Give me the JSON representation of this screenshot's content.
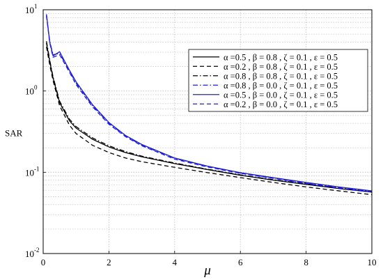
{
  "chart_data": {
    "type": "line",
    "xlabel": "μ",
    "ylabel": "SAR",
    "xlim": [
      0,
      10
    ],
    "ylim": [
      0.01,
      10
    ],
    "yscale": "log",
    "grid": "on (major and minor)",
    "legend_position": "top-right",
    "x_ticks": [
      {
        "value": 0,
        "label": "0"
      },
      {
        "value": 2,
        "label": "2"
      },
      {
        "value": 4,
        "label": "4"
      },
      {
        "value": 6,
        "label": "6"
      },
      {
        "value": 8,
        "label": "8"
      },
      {
        "value": 10,
        "label": "10"
      }
    ],
    "y_ticks": [
      {
        "value": 10,
        "base": "10",
        "exp": "1"
      },
      {
        "value": 1,
        "base": "10",
        "exp": "0"
      },
      {
        "value": 0.1,
        "base": "10",
        "exp": "-1"
      },
      {
        "value": 0.01,
        "base": "10",
        "exp": "-2"
      }
    ],
    "x": [
      0.1,
      0.2,
      0.3,
      0.5,
      0.8,
      1.0,
      1.5,
      2,
      2.5,
      3,
      4,
      5,
      6,
      7,
      8,
      9,
      10
    ],
    "series": [
      {
        "name": "α =0.5 , β = 0.8 , ζ = 0.1 , ε = 0.5",
        "color": "#000000",
        "dash": "solid",
        "values": [
          3.9,
          2.3,
          1.45,
          0.72,
          0.43,
          0.35,
          0.255,
          0.205,
          0.175,
          0.155,
          0.128,
          0.108,
          0.092,
          0.08,
          0.071,
          0.063,
          0.057
        ]
      },
      {
        "name": "α =0.2 , β = 0.8 , ζ = 0.1 , ε = 0.5",
        "color": "#000000",
        "dash": "dashed",
        "values": [
          3.5,
          2.1,
          1.35,
          0.66,
          0.38,
          0.3,
          0.215,
          0.175,
          0.15,
          0.135,
          0.115,
          0.099,
          0.086,
          0.075,
          0.066,
          0.059,
          0.053
        ]
      },
      {
        "name": "α =0.8 , β = 0.8 , ζ = 0.1 , ε = 0.5",
        "color": "#000000",
        "dash": "dashdot",
        "values": [
          4.1,
          2.4,
          1.5,
          0.75,
          0.45,
          0.365,
          0.265,
          0.212,
          0.18,
          0.158,
          0.13,
          0.109,
          0.093,
          0.081,
          0.072,
          0.064,
          0.058
        ]
      },
      {
        "name": "α =0.8 , β = 0.0 , ζ = 0.1 , ε = 0.5",
        "color": "#1f1fd6",
        "dash": "dashdot",
        "values": [
          8.6,
          4.1,
          2.8,
          2.9,
          1.75,
          1.25,
          0.66,
          0.4,
          0.28,
          0.215,
          0.148,
          0.118,
          0.098,
          0.085,
          0.074,
          0.065,
          0.058
        ]
      },
      {
        "name": "α =0.5 , β = 0.0 , ζ = 0.1 , ε = 0.5",
        "color": "#1f1fd6",
        "dash": "solid",
        "values": [
          8.8,
          4.0,
          2.7,
          3.05,
          1.8,
          1.3,
          0.68,
          0.41,
          0.285,
          0.22,
          0.15,
          0.119,
          0.099,
          0.086,
          0.075,
          0.066,
          0.059
        ]
      },
      {
        "name": "α =0.2 , β = 0.0 , ζ = 0.1 , ε = 0.5",
        "color": "#1f1fd6",
        "dash": "dashed",
        "values": [
          8.4,
          3.9,
          2.6,
          2.8,
          1.7,
          1.2,
          0.64,
          0.39,
          0.275,
          0.212,
          0.145,
          0.116,
          0.097,
          0.084,
          0.073,
          0.064,
          0.057
        ]
      }
    ]
  }
}
